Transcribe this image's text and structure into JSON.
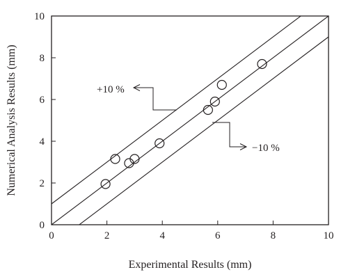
{
  "chart_data": {
    "type": "scatter",
    "title": "",
    "xlabel": "Experimental Results (mm)",
    "ylabel": "Numerical Analysis Results (mm)",
    "xlim": [
      0,
      10
    ],
    "ylim": [
      0,
      10
    ],
    "xticks": [
      "0",
      "2",
      "4",
      "6",
      "8",
      "10"
    ],
    "yticks": [
      "0",
      "2",
      "4",
      "6",
      "8",
      "10"
    ],
    "grid": false,
    "legend": "none",
    "points": [
      {
        "x": 1.95,
        "y": 1.95
      },
      {
        "x": 2.3,
        "y": 3.15
      },
      {
        "x": 2.8,
        "y": 2.95
      },
      {
        "x": 3.0,
        "y": 3.15
      },
      {
        "x": 3.9,
        "y": 3.9
      },
      {
        "x": 5.65,
        "y": 5.5
      },
      {
        "x": 5.9,
        "y": 5.9
      },
      {
        "x": 6.15,
        "y": 6.7
      },
      {
        "x": 7.6,
        "y": 7.7
      }
    ],
    "reference_lines": [
      {
        "slope": 1,
        "intercept": 0
      },
      {
        "slope": 1,
        "intercept": 1
      },
      {
        "slope": 1,
        "intercept": -1
      }
    ],
    "annotations": [
      {
        "text": "+10 %",
        "target": "upper line"
      },
      {
        "text": "−10 %",
        "target": "lower line"
      }
    ],
    "colors": {
      "ink": "#231f20",
      "background": "#ffffff"
    }
  }
}
